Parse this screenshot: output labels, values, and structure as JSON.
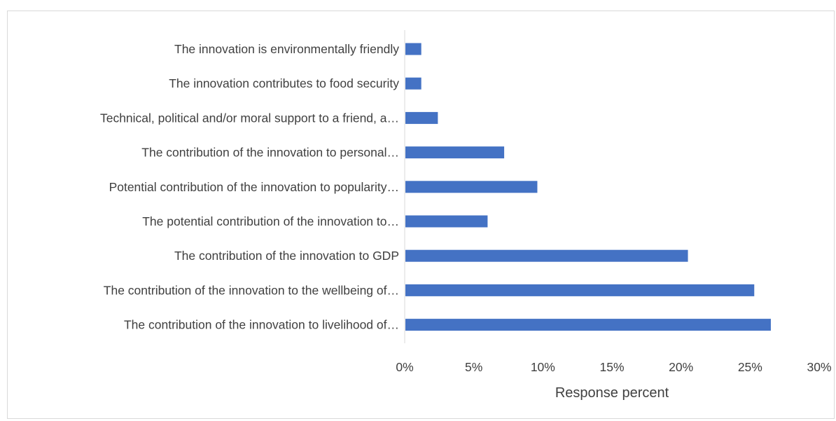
{
  "chart_data": {
    "type": "bar",
    "orientation": "horizontal",
    "categories": [
      "The innovation is environmentally friendly",
      "The innovation contributes to food security",
      "Technical, political and/or moral support to a friend, a…",
      "The contribution of the innovation to personal…",
      "Potential contribution of the innovation to popularity…",
      "The potential contribution of the innovation to…",
      "The contribution of the innovation to GDP",
      "The contribution of the innovation to the wellbeing of…",
      "The contribution of the innovation to livelihood of…"
    ],
    "values": [
      1.2,
      1.2,
      2.4,
      7.2,
      9.6,
      6.0,
      20.5,
      25.3,
      26.5
    ],
    "xlabel": "Response percent",
    "ylabel": "",
    "title": "",
    "xlim": [
      0,
      30
    ],
    "xticks": [
      "0%",
      "5%",
      "10%",
      "15%",
      "20%",
      "25%",
      "30%"
    ],
    "grid": false,
    "legend": "none",
    "bar_color": "#4472c4",
    "axis_color": "#d9d9d9"
  }
}
